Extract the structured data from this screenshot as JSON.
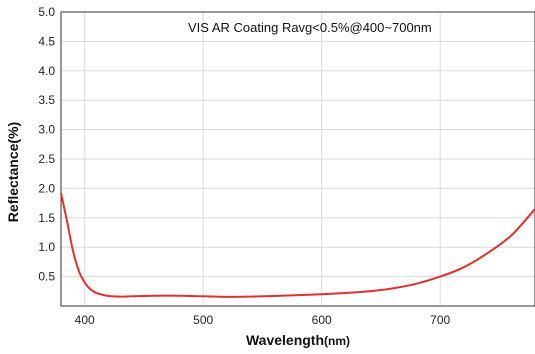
{
  "chart_data": {
    "type": "line",
    "title": "VIS AR Coating Ravg<0.5%@400~700nm",
    "xlabel_main": "Wavelength",
    "xlabel_unit": "(nm)",
    "ylabel": "Reflectance(%)",
    "xlim": [
      380,
      780
    ],
    "ylim": [
      0,
      5.0
    ],
    "x_ticks": [
      400,
      500,
      600,
      700
    ],
    "y_ticks": [
      0.5,
      1.0,
      1.5,
      2.0,
      2.5,
      3.0,
      3.5,
      4.0,
      4.5,
      5.0
    ],
    "grid": true,
    "series": [
      {
        "color": "#e03030",
        "points": [
          [
            380,
            1.92
          ],
          [
            385,
            1.45
          ],
          [
            390,
            0.95
          ],
          [
            395,
            0.6
          ],
          [
            400,
            0.4
          ],
          [
            405,
            0.28
          ],
          [
            410,
            0.22
          ],
          [
            415,
            0.19
          ],
          [
            420,
            0.17
          ],
          [
            430,
            0.16
          ],
          [
            440,
            0.165
          ],
          [
            460,
            0.175
          ],
          [
            480,
            0.175
          ],
          [
            500,
            0.165
          ],
          [
            520,
            0.155
          ],
          [
            540,
            0.16
          ],
          [
            560,
            0.17
          ],
          [
            580,
            0.185
          ],
          [
            600,
            0.2
          ],
          [
            620,
            0.22
          ],
          [
            640,
            0.25
          ],
          [
            660,
            0.3
          ],
          [
            680,
            0.38
          ],
          [
            700,
            0.5
          ],
          [
            720,
            0.66
          ],
          [
            740,
            0.9
          ],
          [
            760,
            1.2
          ],
          [
            780,
            1.65
          ]
        ]
      }
    ]
  }
}
